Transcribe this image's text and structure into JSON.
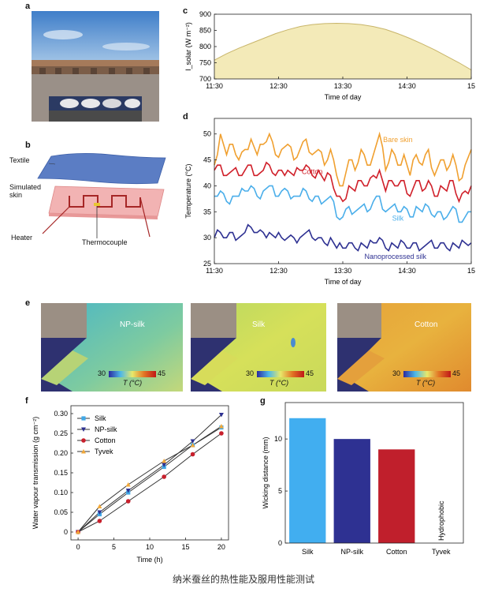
{
  "panels": {
    "a": {
      "letter": "a"
    },
    "b": {
      "letter": "b",
      "labels": {
        "textile": "Textile",
        "skin": "Simulated\nskin",
        "heater": "Heater",
        "thermocouple": "Thermocouple"
      }
    },
    "c": {
      "letter": "c"
    },
    "d": {
      "letter": "d"
    },
    "e": {
      "letter": "e"
    },
    "f": {
      "letter": "f"
    },
    "g": {
      "letter": "g"
    }
  },
  "thermal_images": [
    {
      "label": "NP-silk"
    },
    {
      "label": "Silk"
    },
    {
      "label": "Cotton"
    }
  ],
  "colorbar": {
    "min": "30",
    "max": "45",
    "unit": "T (°C)"
  },
  "caption": "纳米蚕丝的热性能及服用性能测试",
  "colors": {
    "bare": "#f0a030",
    "cotton": "#d0202a",
    "silk": "#4aaeea",
    "np": "#2e3192",
    "solar": "#f3eab8",
    "solar_line": "#c8b56a",
    "tyvek": "#f2a93b"
  },
  "chart_data": [
    {
      "id": "c",
      "type": "area",
      "xlabel": "Time of day",
      "ylabel": "I_solar (W m⁻²)",
      "xticks": [
        "11:30",
        "12:30",
        "13:30",
        "14:30",
        "15"
      ],
      "xlim": [
        0,
        210
      ],
      "ylim": [
        700,
        900
      ],
      "yticks": [
        700,
        750,
        800,
        850,
        900
      ],
      "x": [
        0,
        10,
        20,
        30,
        40,
        50,
        60,
        70,
        80,
        90,
        100,
        110,
        120,
        130,
        140,
        150,
        160,
        170,
        180,
        190,
        200,
        210
      ],
      "values": [
        758,
        778,
        795,
        810,
        825,
        840,
        852,
        862,
        868,
        871,
        872,
        871,
        868,
        862,
        853,
        840,
        825,
        808,
        790,
        770,
        750,
        728
      ]
    },
    {
      "id": "d",
      "type": "line",
      "xlabel": "Time of day",
      "ylabel": "Temperature (°C)",
      "xticks": [
        "11:30",
        "12:30",
        "13:30",
        "14:30",
        "15"
      ],
      "xlim": [
        0,
        210
      ],
      "ylim": [
        25,
        53
      ],
      "yticks": [
        25,
        30,
        35,
        40,
        45,
        50
      ],
      "x": [
        0,
        5,
        10,
        15,
        20,
        25,
        30,
        35,
        40,
        45,
        50,
        55,
        60,
        65,
        70,
        75,
        80,
        85,
        90,
        95,
        100,
        105,
        110,
        115,
        120,
        125,
        130,
        135,
        140,
        145,
        150,
        155,
        160,
        165,
        170,
        175,
        180,
        185,
        190,
        195,
        200,
        205,
        210
      ],
      "series": [
        {
          "name": "Bare skin",
          "values": [
            44,
            50,
            46,
            48,
            45,
            47,
            49,
            46,
            48,
            50,
            46,
            47,
            48,
            45,
            47,
            49,
            46,
            47,
            44,
            47,
            42,
            40,
            45,
            43,
            47,
            44,
            46,
            50,
            43,
            47,
            44,
            46,
            42,
            46,
            44,
            47,
            42,
            45,
            43,
            46,
            41,
            44,
            47
          ]
        },
        {
          "name": "Cotton",
          "values": [
            43,
            44,
            42,
            43,
            42,
            43,
            44,
            42,
            43,
            44,
            42,
            43,
            43,
            42,
            43,
            44,
            42,
            43,
            41,
            42,
            38,
            37,
            40,
            39,
            41,
            40,
            42,
            43,
            39,
            41,
            40,
            41,
            38,
            41,
            39,
            41,
            38,
            40,
            39,
            41,
            37,
            39,
            40
          ]
        },
        {
          "name": "Silk",
          "values": [
            38,
            39,
            37,
            38,
            38,
            39,
            40,
            38,
            39,
            40,
            38,
            39,
            39,
            38,
            38,
            39,
            37,
            38,
            37,
            38,
            34,
            34,
            36,
            35,
            36,
            35,
            37,
            38,
            35,
            36,
            35,
            36,
            34,
            36,
            35,
            36,
            34,
            35,
            34,
            36,
            33,
            34,
            35
          ]
        },
        {
          "name": "Nanoprocessed silk",
          "values": [
            30,
            31,
            30,
            31,
            30,
            31,
            32,
            31,
            31,
            31,
            30,
            30,
            30,
            30,
            30,
            31,
            30,
            30,
            29,
            30,
            28,
            28,
            29,
            28,
            29,
            28,
            29,
            30,
            28,
            29,
            28,
            29,
            28,
            29,
            28,
            29,
            28,
            29,
            28,
            29,
            28,
            29,
            29
          ]
        }
      ],
      "series_labels": [
        "Bare skin",
        "Cotton",
        "Silk",
        "Nanoprocessed silk"
      ]
    },
    {
      "id": "f",
      "type": "line",
      "xlabel": "Time (h)",
      "ylabel": "Water vapour transmission (g cm⁻²)",
      "xlim": [
        -1,
        21
      ],
      "ylim": [
        -0.02,
        0.32
      ],
      "xticks": [
        0,
        5,
        10,
        15,
        20
      ],
      "yticks": [
        0,
        0.05,
        0.1,
        0.15,
        0.2,
        0.25,
        0.3
      ],
      "ytick_labels": [
        "0",
        "0.05",
        "0.10",
        "0.15",
        "0.20",
        "0.25",
        "0.30"
      ],
      "x": [
        0,
        3,
        7,
        12,
        16,
        20
      ],
      "legend": "upper-left",
      "series": [
        {
          "name": "Silk",
          "values": [
            0,
            0.045,
            0.1,
            0.165,
            0.22,
            0.265
          ]
        },
        {
          "name": "NP-silk",
          "values": [
            0,
            0.05,
            0.105,
            0.17,
            0.23,
            0.297
          ]
        },
        {
          "name": "Cotton",
          "values": [
            0,
            0.028,
            0.078,
            0.14,
            0.197,
            0.25
          ]
        },
        {
          "name": "Tyvek",
          "values": [
            0,
            0.065,
            0.12,
            0.18,
            0.22,
            0.268
          ]
        }
      ]
    },
    {
      "id": "g",
      "type": "bar",
      "ylabel": "Wicking distance (mm)",
      "categories": [
        "Silk",
        "NP-silk",
        "Cotton",
        "Tyvek"
      ],
      "values": [
        12,
        10,
        9,
        0
      ],
      "ylim": [
        0,
        13.5
      ],
      "yticks": [
        0,
        5,
        10
      ],
      "annotations": [
        {
          "category": "Tyvek",
          "text": "Hydrophobic"
        }
      ]
    }
  ]
}
